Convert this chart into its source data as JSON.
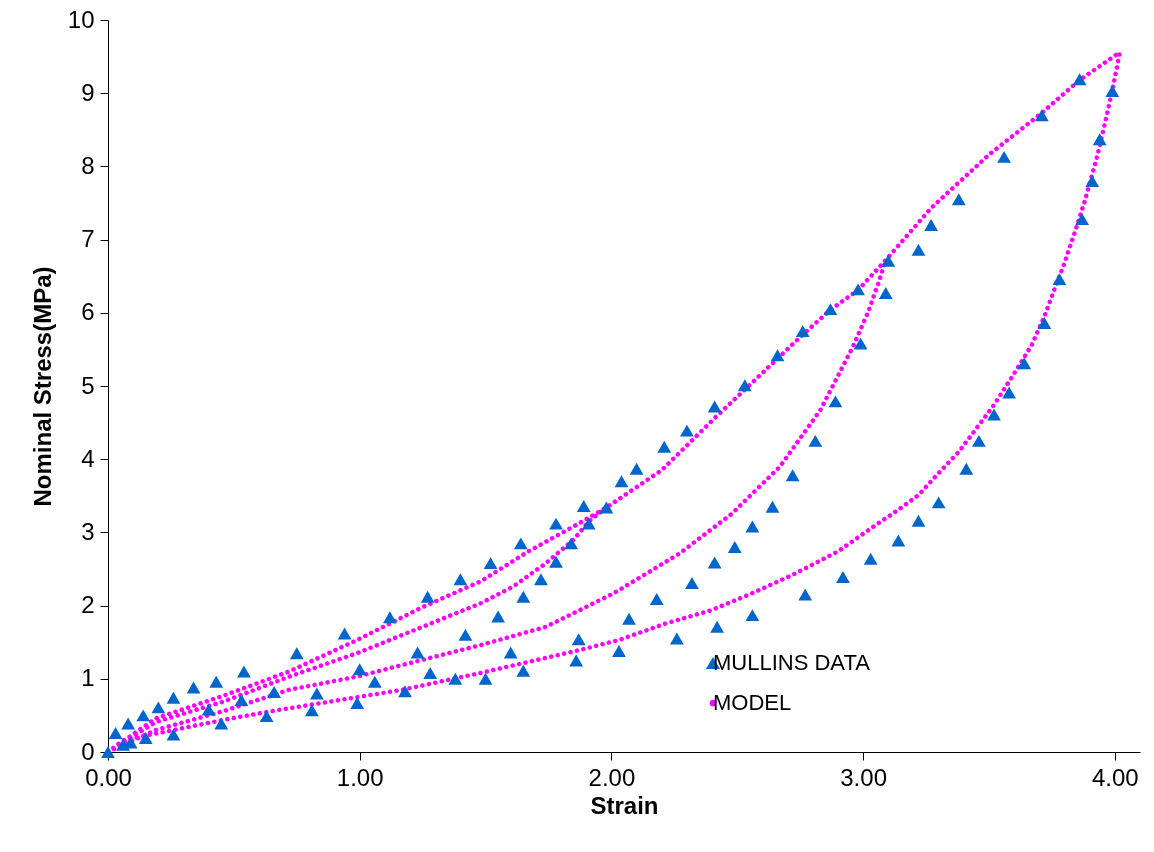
{
  "chart_data": {
    "type": "scatter",
    "xlabel": "Strain",
    "ylabel": "Nominal Stress(MPa)",
    "xlim": [
      0,
      4.1
    ],
    "xticks": [
      {
        "value": 0,
        "label": "0.00"
      },
      {
        "value": 1,
        "label": "1.00"
      },
      {
        "value": 2,
        "label": "2.00"
      },
      {
        "value": 3,
        "label": "3.00"
      },
      {
        "value": 4,
        "label": "4.00"
      }
    ],
    "ylim": [
      0,
      10
    ],
    "yticks": [
      0,
      1,
      2,
      3,
      4,
      5,
      6,
      7,
      8,
      9,
      10
    ],
    "grid": false,
    "legend": "bottom right",
    "series": [
      {
        "name": "MULLINS DATA",
        "type": "scatter",
        "marker": "triangle",
        "color": "#0066cc",
        "x": [
          0,
          0.03,
          0.06,
          0.09,
          0.08,
          0.14,
          0.15,
          0.2,
          0.26,
          0.26,
          0.34,
          0.43,
          0.4,
          0.45,
          0.53,
          0.54,
          0.63,
          0.66,
          0.75,
          0.81,
          0.83,
          0.94,
          0.99,
          1.0,
          1.06,
          1.12,
          1.18,
          1.23,
          1.27,
          1.28,
          1.38,
          1.4,
          1.42,
          1.5,
          1.52,
          1.55,
          1.6,
          1.65,
          1.65,
          1.64,
          1.72,
          1.78,
          1.78,
          1.84,
          1.86,
          1.87,
          1.89,
          1.91,
          1.98,
          2.03,
          2.04,
          2.07,
          2.1,
          2.18,
          2.21,
          2.26,
          2.3,
          2.32,
          2.41,
          2.41,
          2.42,
          2.49,
          2.53,
          2.56,
          2.56,
          2.64,
          2.66,
          2.72,
          2.76,
          2.77,
          2.81,
          2.87,
          2.89,
          2.92,
          2.98,
          2.99,
          3.03,
          3.09,
          3.1,
          3.14,
          3.22,
          3.22,
          3.27,
          3.3,
          3.38,
          3.41,
          3.46,
          3.52,
          3.56,
          3.58,
          3.64,
          3.71,
          3.72,
          3.78,
          3.86,
          3.87,
          3.91,
          3.94,
          3.99
        ],
        "values": [
          0,
          0.26,
          0.1,
          0.13,
          0.39,
          0.5,
          0.19,
          0.61,
          0.74,
          0.24,
          0.88,
          0.96,
          0.58,
          0.39,
          0.71,
          1.1,
          0.49,
          0.82,
          1.35,
          0.57,
          0.8,
          1.62,
          0.67,
          1.13,
          0.96,
          1.84,
          0.83,
          1.36,
          2.12,
          1.08,
          1.0,
          2.36,
          1.6,
          1.0,
          2.58,
          1.85,
          1.36,
          2.12,
          1.11,
          2.85,
          2.36,
          2.6,
          3.12,
          2.85,
          1.25,
          1.54,
          3.36,
          3.12,
          3.34,
          1.38,
          3.7,
          1.82,
          3.87,
          2.09,
          4.17,
          1.55,
          4.39,
          2.31,
          4.72,
          2.59,
          1.71,
          2.8,
          5.01,
          3.08,
          1.87,
          3.35,
          5.42,
          3.78,
          5.75,
          2.15,
          4.25,
          6.05,
          4.79,
          2.39,
          6.32,
          5.58,
          2.64,
          6.27,
          6.71,
          2.89,
          6.86,
          3.16,
          7.2,
          3.41,
          7.55,
          3.87,
          4.25,
          4.61,
          8.13,
          4.91,
          5.31,
          8.7,
          5.86,
          6.46,
          9.19,
          7.28,
          7.8,
          8.37,
          9.03
        ]
      },
      {
        "name": "MODEL",
        "type": "line",
        "line_style": "dotted",
        "color": "#ff00ff",
        "x": [
          0,
          0.19,
          0.46,
          0.72,
          0.99,
          1.25,
          1.48,
          1.67,
          1.87,
          1.98,
          2.2,
          2.41,
          2.53,
          2.76,
          2.87,
          2.98,
          3.09,
          3.27,
          3.5,
          3.71,
          3.86,
          4.02,
          null,
          0,
          0.19,
          0.46,
          0.72,
          0.99,
          1.25,
          1.48,
          1.61,
          1.74,
          1.85,
          1.91,
          1.98,
          null,
          0,
          0.19,
          0.46,
          0.72,
          0.99,
          1.25,
          1.48,
          1.74,
          2.01,
          2.27,
          2.48,
          2.67,
          2.83,
          2.96,
          3.02,
          3.06,
          3.09,
          null,
          0,
          0.06,
          0.26,
          0.46,
          0.67,
          0.92,
          1.17,
          1.48,
          1.67,
          1.87,
          2.03,
          2.22,
          2.4,
          2.56,
          2.72,
          2.9,
          3.05,
          3.14,
          3.22,
          3.3,
          3.38,
          3.45,
          3.52,
          3.6,
          3.67,
          3.72,
          3.76,
          3.8,
          3.84,
          3.88,
          3.92,
          3.94,
          3.96,
          3.98,
          4.0,
          4.02
        ],
        "values": [
          0,
          0.46,
          0.77,
          1.1,
          1.53,
          1.98,
          2.33,
          2.74,
          3.12,
          3.34,
          3.85,
          4.56,
          4.95,
          5.7,
          6.04,
          6.31,
          6.72,
          7.43,
          8.16,
          8.73,
          9.18,
          9.56,
          null,
          0,
          0.41,
          0.69,
          1.03,
          1.35,
          1.71,
          2.03,
          2.26,
          2.58,
          2.9,
          3.15,
          3.34,
          null,
          0,
          0.3,
          0.56,
          0.85,
          1.03,
          1.26,
          1.46,
          1.71,
          2.17,
          2.71,
          3.26,
          3.9,
          4.67,
          5.54,
          6.01,
          6.4,
          6.72,
          null,
          0,
          0.16,
          0.3,
          0.44,
          0.57,
          0.71,
          0.85,
          1.08,
          1.23,
          1.39,
          1.53,
          1.76,
          1.94,
          2.17,
          2.42,
          2.74,
          3.1,
          3.31,
          3.51,
          3.81,
          4.1,
          4.42,
          4.74,
          5.17,
          5.56,
          5.95,
          6.32,
          6.68,
          7.09,
          7.52,
          8.01,
          8.28,
          8.58,
          8.88,
          9.21,
          9.56
        ]
      }
    ]
  }
}
